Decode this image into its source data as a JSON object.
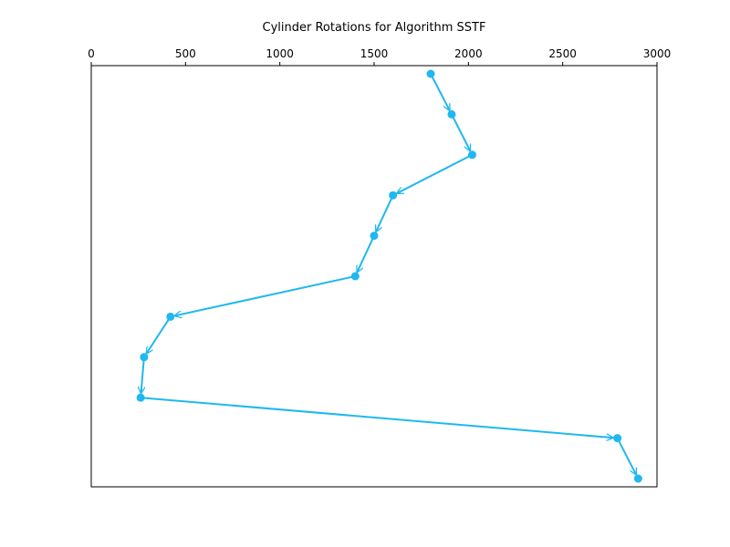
{
  "chart_data": {
    "type": "line",
    "title": "Cylinder Rotations for Algorithm SSTF",
    "xlabel": "",
    "ylabel": "",
    "x_axis_position": "top",
    "xlim": [
      0,
      3000
    ],
    "xticks": [
      0,
      500,
      1000,
      1500,
      2000,
      2500,
      3000
    ],
    "xtick_labels": [
      "0",
      "500",
      "1000",
      "1500",
      "2000",
      "2500",
      "3000"
    ],
    "y_ticks_visible": false,
    "y_axis_inverted": true,
    "grid": false,
    "legend": "none",
    "series": [
      {
        "color": "#1fb8f0",
        "marker": "circle",
        "arrows": true,
        "x": [
          1800,
          1911,
          2020,
          1600,
          1500,
          1400,
          420,
          280,
          262,
          2790,
          2900
        ],
        "y": [
          1,
          2,
          3,
          4,
          5,
          6,
          7,
          8,
          9,
          10,
          11
        ]
      }
    ]
  }
}
